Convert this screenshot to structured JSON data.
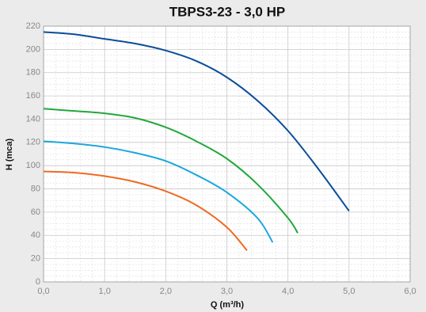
{
  "chart_data": {
    "type": "line",
    "title": "TBPS3-23 - 3,0 HP",
    "x_label": "Q (m³/h)",
    "y_label": "H (mca)",
    "xlim": [
      0,
      6
    ],
    "ylim": [
      0,
      220
    ],
    "xticks": [
      {
        "value": 0,
        "label": "0,0"
      },
      {
        "value": 1,
        "label": "1,0"
      },
      {
        "value": 2,
        "label": "2,0"
      },
      {
        "value": 3,
        "label": "3,0"
      },
      {
        "value": 4,
        "label": "4,0"
      },
      {
        "value": 5,
        "label": "5,0"
      },
      {
        "value": 6,
        "label": "6,0"
      }
    ],
    "yticks": [
      0,
      20,
      40,
      60,
      80,
      100,
      120,
      140,
      160,
      180,
      200,
      220
    ],
    "grid": true,
    "series": [
      {
        "color": "#0b4d9a",
        "x": [
          0,
          0.5,
          1,
          1.5,
          2,
          2.5,
          3,
          3.5,
          4,
          4.5,
          5
        ],
        "values": [
          215,
          213,
          209,
          205,
          199,
          190,
          176,
          156,
          130,
          97,
          61
        ]
      },
      {
        "color": "#21a83b",
        "x": [
          0,
          0.5,
          1,
          1.5,
          2,
          2.5,
          3,
          3.5,
          4,
          4.16
        ],
        "values": [
          149,
          147,
          145,
          141,
          133,
          121,
          106,
          84,
          55,
          42
        ]
      },
      {
        "color": "#1aa7dc",
        "x": [
          0,
          0.5,
          1,
          1.5,
          2,
          2.5,
          3,
          3.5,
          3.75
        ],
        "values": [
          121,
          119,
          116,
          111,
          104,
          92,
          77,
          55,
          34
        ]
      },
      {
        "color": "#ee6a22",
        "x": [
          0,
          0.5,
          1,
          1.5,
          2,
          2.5,
          3,
          3.33
        ],
        "values": [
          95,
          94,
          91,
          86,
          78,
          66,
          47,
          27
        ]
      }
    ]
  }
}
